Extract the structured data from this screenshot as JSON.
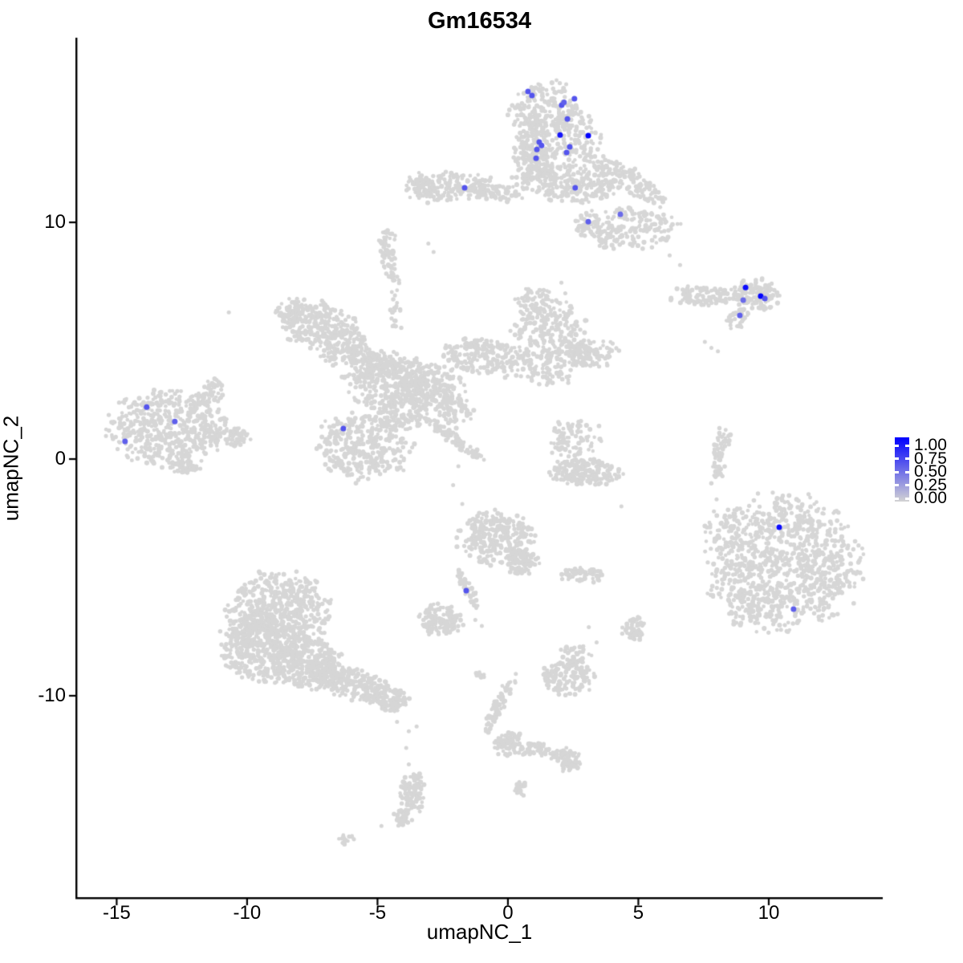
{
  "title": "Gm16534",
  "axes": {
    "x": {
      "title": "umapNC_1",
      "ticks": [
        -15,
        -10,
        -5,
        0,
        5,
        10
      ]
    },
    "y": {
      "title": "umapNC_2",
      "ticks": [
        10,
        0,
        -10
      ]
    }
  },
  "legend": {
    "labels": [
      "1.00",
      "0.75",
      "0.50",
      "0.25",
      "0.00"
    ],
    "values": [
      1.0,
      0.75,
      0.5,
      0.25,
      0.0
    ],
    "low_color": "#D3D3D3",
    "high_color": "#0000FF"
  },
  "chart_data": {
    "type": "scatter",
    "title": "Gm16534",
    "xlabel": "umapNC_1",
    "ylabel": "umapNC_2",
    "xlim": [
      -16.55,
      14.37
    ],
    "ylim": [
      -18.51,
      17.8
    ],
    "grid": false,
    "legend_position": "right",
    "base_point_color": "#D6D6D6",
    "color_scale": {
      "low": "#D3D3D3",
      "high": "#0000FF",
      "domain": [
        0,
        1
      ]
    },
    "cluster_format": "cx,cy,rx,ry,rot_deg,n  (UMAP cell-cluster blobs, data units)",
    "clusters": [
      [
        1.45,
        14.88,
        1.29,
        1.02,
        0,
        140
      ],
      [
        1.85,
        13.56,
        1.6,
        1.29,
        0,
        260
      ],
      [
        0.92,
        12.44,
        0.77,
        0.85,
        0,
        90
      ],
      [
        2.22,
        11.66,
        1.9,
        0.75,
        -10,
        240
      ],
      [
        4.5,
        11.8,
        1.7,
        0.5,
        -34,
        150
      ],
      [
        -2.3,
        11.5,
        1.55,
        0.6,
        5,
        150
      ],
      [
        -3.3,
        11.6,
        0.5,
        0.5,
        0,
        40
      ],
      [
        -0.6,
        11.3,
        1.1,
        0.35,
        -8,
        70
      ],
      [
        5.0,
        9.8,
        1.4,
        0.85,
        0,
        130
      ],
      [
        3.9,
        9.4,
        0.6,
        0.55,
        0,
        45
      ],
      [
        3.05,
        9.95,
        0.48,
        0.52,
        0,
        50
      ],
      [
        -4.55,
        8.3,
        0.28,
        1.05,
        15,
        55
      ],
      [
        -4.65,
        9.35,
        0.3,
        0.3,
        0,
        18
      ],
      [
        -4.3,
        6.3,
        0.25,
        1.1,
        0,
        22
      ],
      [
        -7.3,
        5.7,
        1.35,
        0.95,
        0,
        200
      ],
      [
        -6.3,
        4.8,
        1.0,
        0.8,
        0,
        140
      ],
      [
        -8.3,
        6.3,
        0.6,
        0.5,
        0,
        60
      ],
      [
        -5.3,
        4.1,
        1.1,
        0.55,
        -30,
        110
      ],
      [
        -4.5,
        3.3,
        1.6,
        1.15,
        0,
        300
      ],
      [
        -2.9,
        3.0,
        1.3,
        0.95,
        0,
        220
      ],
      [
        -0.9,
        4.3,
        1.6,
        0.75,
        -10,
        190
      ],
      [
        1.6,
        4.9,
        1.45,
        1.7,
        0,
        320
      ],
      [
        3.3,
        4.5,
        0.85,
        0.55,
        0,
        80
      ],
      [
        1.0,
        6.5,
        0.75,
        0.75,
        0,
        70
      ],
      [
        -2.1,
        0.9,
        1.35,
        0.22,
        -38,
        90
      ],
      [
        -5.6,
        0.5,
        1.75,
        1.35,
        0,
        340
      ],
      [
        -4.1,
        1.9,
        0.9,
        0.65,
        0,
        100
      ],
      [
        -2.0,
        2.0,
        0.7,
        0.6,
        0,
        50
      ],
      [
        -13.0,
        1.3,
        2.25,
        1.5,
        0,
        480
      ],
      [
        -11.5,
        2.75,
        0.75,
        0.45,
        35,
        55
      ],
      [
        -10.7,
        0.95,
        0.85,
        0.4,
        0,
        70
      ],
      [
        -12.35,
        -0.3,
        0.6,
        0.35,
        0,
        45
      ],
      [
        7.5,
        6.9,
        1.15,
        0.38,
        0,
        100
      ],
      [
        9.55,
        6.95,
        0.8,
        0.62,
        0,
        130
      ],
      [
        8.85,
        5.9,
        0.45,
        0.4,
        40,
        40
      ],
      [
        2.95,
        -0.55,
        1.3,
        0.55,
        0,
        190
      ],
      [
        2.6,
        0.85,
        1.05,
        0.85,
        0,
        90
      ],
      [
        8.15,
        0.2,
        0.3,
        1.25,
        -8,
        55
      ],
      [
        10.6,
        -4.4,
        2.7,
        2.7,
        0,
        950
      ],
      [
        8.2,
        -2.9,
        0.6,
        1.1,
        0,
        30
      ],
      [
        8.9,
        -6.3,
        0.6,
        0.8,
        0,
        40
      ],
      [
        -8.8,
        -6.4,
        1.9,
        1.55,
        0,
        520
      ],
      [
        -9.5,
        -8.0,
        1.45,
        1.35,
        0,
        380
      ],
      [
        -7.7,
        -8.6,
        1.3,
        1.0,
        0,
        280
      ],
      [
        -6.0,
        -9.5,
        1.6,
        0.6,
        -15,
        240
      ],
      [
        -4.5,
        -10.2,
        0.7,
        0.5,
        0,
        90
      ],
      [
        -0.45,
        -3.35,
        1.35,
        1.05,
        0,
        280
      ],
      [
        0.55,
        -4.35,
        0.6,
        0.5,
        0,
        80
      ],
      [
        -1.55,
        -5.5,
        0.22,
        0.9,
        25,
        55
      ],
      [
        -2.6,
        -6.8,
        0.8,
        0.62,
        0,
        130
      ],
      [
        2.9,
        -4.9,
        0.9,
        0.32,
        0,
        65
      ],
      [
        4.85,
        -7.2,
        0.45,
        0.48,
        0,
        55
      ],
      [
        2.35,
        -9.2,
        1.0,
        0.75,
        0,
        150
      ],
      [
        2.6,
        -8.3,
        0.6,
        0.45,
        0,
        30
      ],
      [
        -0.35,
        -10.4,
        0.22,
        1.3,
        -25,
        65
      ],
      [
        -1.05,
        -9.1,
        0.22,
        0.22,
        0,
        14
      ],
      [
        0.0,
        -12.0,
        0.55,
        0.5,
        0,
        75
      ],
      [
        1.2,
        -12.3,
        1.1,
        0.28,
        -10,
        65
      ],
      [
        2.3,
        -12.7,
        0.5,
        0.45,
        0,
        60
      ],
      [
        0.5,
        -13.95,
        0.25,
        0.3,
        0,
        22
      ],
      [
        -3.65,
        -14.1,
        0.42,
        0.9,
        0,
        100
      ],
      [
        -4.05,
        -15.15,
        0.38,
        0.32,
        0,
        35
      ],
      [
        -6.15,
        -16.1,
        0.33,
        0.22,
        0,
        16
      ]
    ],
    "singles": [
      [
        -10.7,
        6.2
      ],
      [
        -3.05,
        9.1
      ],
      [
        -2.85,
        8.75
      ],
      [
        2.05,
        7.45
      ],
      [
        2.2,
        7.0
      ],
      [
        6.2,
        8.6
      ],
      [
        6.6,
        8.2
      ],
      [
        6.9,
        7.3
      ],
      [
        7.55,
        4.95
      ],
      [
        7.8,
        4.7
      ],
      [
        8.05,
        4.55
      ],
      [
        4.35,
        -2.0
      ],
      [
        8.0,
        -1.7
      ],
      [
        8.7,
        -2.3
      ],
      [
        9.3,
        -2.6
      ],
      [
        8.6,
        -3.9
      ],
      [
        3.1,
        -7.1
      ],
      [
        3.4,
        -7.75
      ],
      [
        2.75,
        -8.15
      ],
      [
        -0.85,
        -11.4
      ],
      [
        -3.9,
        -12.2
      ],
      [
        -3.8,
        -12.9
      ],
      [
        -4.85,
        -15.5
      ],
      [
        -4.25,
        -11.1
      ],
      [
        -3.8,
        -11.5
      ],
      [
        -3.5,
        -11.3
      ],
      [
        -1.25,
        -6.8
      ],
      [
        -1.0,
        -7.05
      ],
      [
        -1.9,
        -0.3
      ],
      [
        -2.1,
        -1.1
      ],
      [
        -1.75,
        -1.9
      ]
    ],
    "expression_format": "x,y,expression_value(0-1) mapped lightgrey->blue",
    "expression_points": [
      [
        0.77,
        15.53,
        0.6
      ],
      [
        0.92,
        15.36,
        0.6
      ],
      [
        2.55,
        15.22,
        0.6
      ],
      [
        2.06,
        14.95,
        0.6
      ],
      [
        2.15,
        15.07,
        0.55
      ],
      [
        2.28,
        14.37,
        0.6
      ],
      [
        2.0,
        13.69,
        0.9
      ],
      [
        3.08,
        13.66,
        1.0
      ],
      [
        1.2,
        13.39,
        0.6
      ],
      [
        1.29,
        13.25,
        0.6
      ],
      [
        1.11,
        13.08,
        0.6
      ],
      [
        2.37,
        13.19,
        0.6
      ],
      [
        2.25,
        12.95,
        0.6
      ],
      [
        1.08,
        12.71,
        0.6
      ],
      [
        -1.66,
        11.46,
        0.6
      ],
      [
        2.58,
        11.46,
        0.6
      ],
      [
        3.08,
        10.03,
        0.55
      ],
      [
        4.31,
        10.34,
        0.5
      ],
      [
        9.11,
        7.25,
        0.95
      ],
      [
        9.69,
        6.88,
        1.0
      ],
      [
        9.85,
        6.78,
        0.6
      ],
      [
        9.02,
        6.71,
        0.5
      ],
      [
        8.89,
        6.07,
        0.55
      ],
      [
        -13.85,
        2.2,
        0.6
      ],
      [
        -12.77,
        1.59,
        0.55
      ],
      [
        -14.68,
        0.75,
        0.55
      ],
      [
        -6.31,
        1.29,
        0.6
      ],
      [
        -1.6,
        -5.56,
        0.6
      ],
      [
        10.4,
        -2.88,
        0.95
      ],
      [
        10.95,
        -6.34,
        0.55
      ]
    ]
  }
}
